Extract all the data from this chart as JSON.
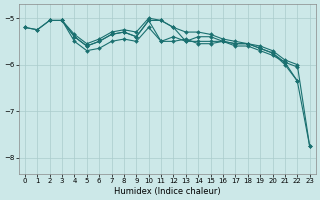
{
  "xlabel": "Humidex (Indice chaleur)",
  "bg_color": "#cce8e8",
  "grid_color": "#aacccc",
  "line_color": "#1a7070",
  "xlim": [
    -0.5,
    23.5
  ],
  "ylim": [
    -8.35,
    -4.7
  ],
  "yticks": [
    -8,
    -7,
    -6,
    -5
  ],
  "xticks": [
    0,
    1,
    2,
    3,
    4,
    5,
    6,
    7,
    8,
    9,
    10,
    11,
    12,
    13,
    14,
    15,
    16,
    17,
    18,
    19,
    20,
    21,
    22,
    23
  ],
  "series": [
    [
      -5.2,
      -5.25,
      -5.05,
      -5.05,
      -5.4,
      -5.6,
      -5.5,
      -5.35,
      -5.3,
      -5.4,
      -5.05,
      -5.05,
      -5.2,
      -5.5,
      -5.4,
      -5.4,
      -5.5,
      -5.55,
      -5.55,
      -5.65,
      -5.75,
      -6.0,
      -6.35,
      null
    ],
    [
      -5.2,
      -5.25,
      -5.05,
      -5.05,
      -5.4,
      -5.6,
      -5.5,
      -5.35,
      -5.3,
      -5.4,
      -5.05,
      -5.5,
      -5.4,
      -5.5,
      -5.5,
      -5.5,
      -5.5,
      -5.55,
      -5.55,
      -5.65,
      -5.75,
      -5.95,
      -6.35,
      -7.75
    ],
    [
      null,
      null,
      null,
      -5.05,
      -5.5,
      -5.7,
      -5.65,
      -5.5,
      -5.45,
      -5.5,
      -5.2,
      -5.5,
      -5.5,
      -5.45,
      -5.55,
      -5.55,
      -5.5,
      -5.6,
      -5.6,
      -5.7,
      -5.8,
      -5.95,
      -6.05,
      null
    ],
    [
      null,
      null,
      -5.05,
      -5.05,
      -5.35,
      -5.55,
      -5.45,
      -5.3,
      -5.25,
      -5.3,
      -5.0,
      -5.05,
      -5.2,
      -5.3,
      -5.3,
      -5.35,
      -5.45,
      -5.5,
      -5.55,
      -5.6,
      -5.7,
      -5.9,
      -6.0,
      -7.75
    ]
  ]
}
